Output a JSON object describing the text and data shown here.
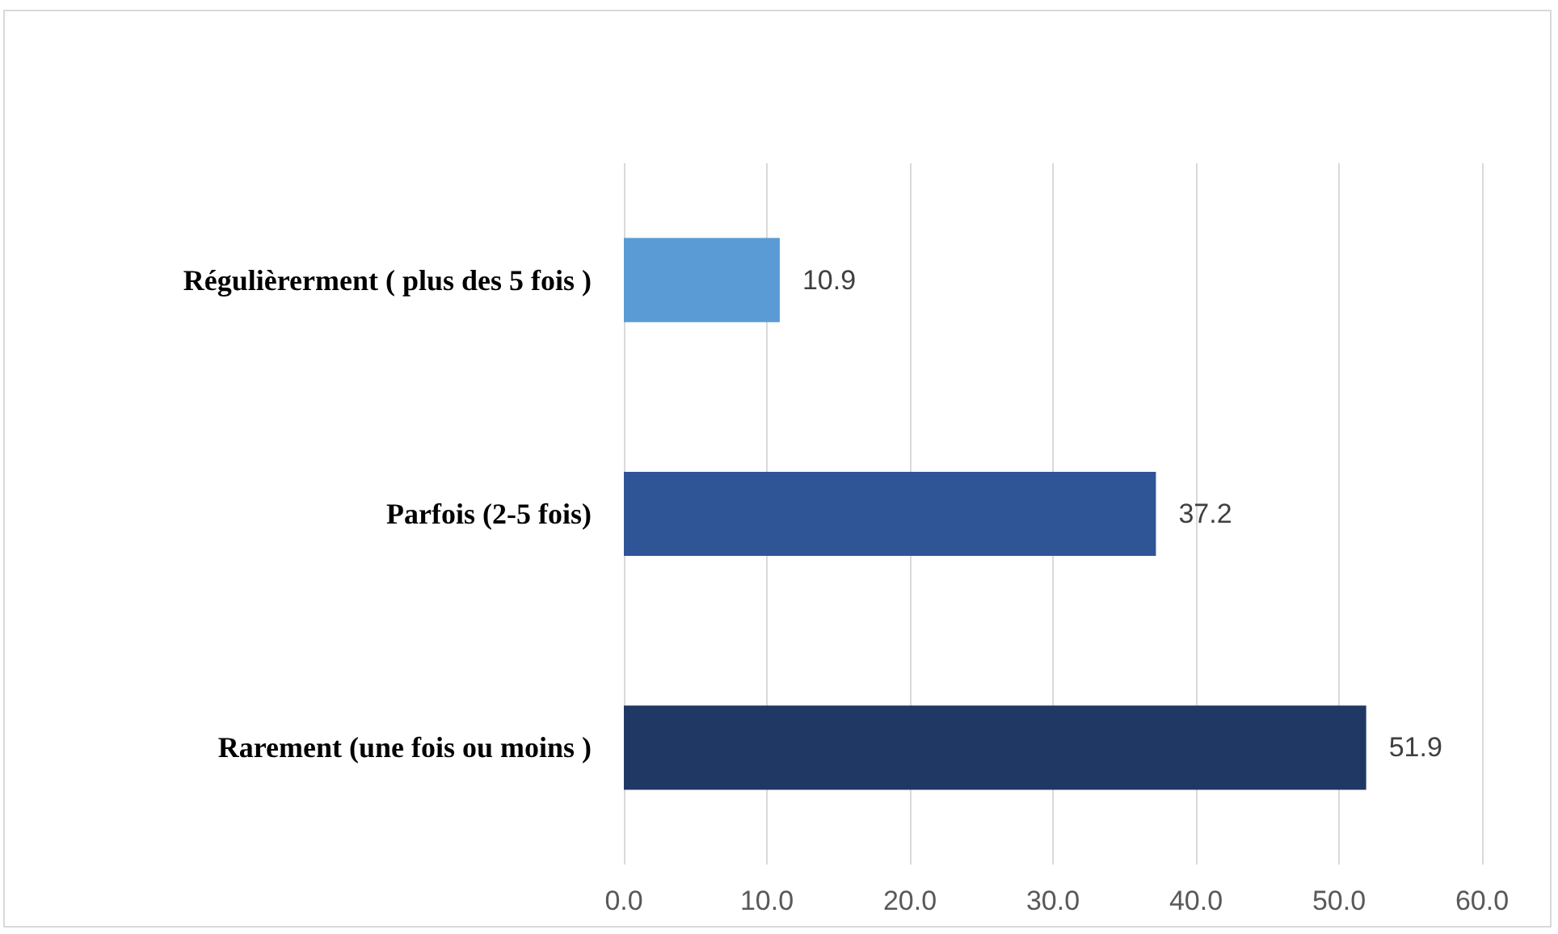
{
  "chart_data": {
    "type": "bar",
    "orientation": "horizontal",
    "categories": [
      "Régulièrerment ( plus des 5 fois )",
      "Parfois (2-5 fois)",
      "Rarement (une fois ou moins )"
    ],
    "values": [
      10.9,
      37.2,
      51.9
    ],
    "colors": [
      "#5b9bd5",
      "#2f5597",
      "#203864"
    ],
    "xlim": [
      0,
      60
    ],
    "xticks": [
      {
        "value": 0,
        "label": "0.0"
      },
      {
        "value": 10,
        "label": "10.0"
      },
      {
        "value": 20,
        "label": "20.0"
      },
      {
        "value": 30,
        "label": "30.0"
      },
      {
        "value": 40,
        "label": "40.0"
      },
      {
        "value": 50,
        "label": "50.0"
      },
      {
        "value": 60,
        "label": "60.0"
      }
    ],
    "grid": "x",
    "data_labels": true
  }
}
